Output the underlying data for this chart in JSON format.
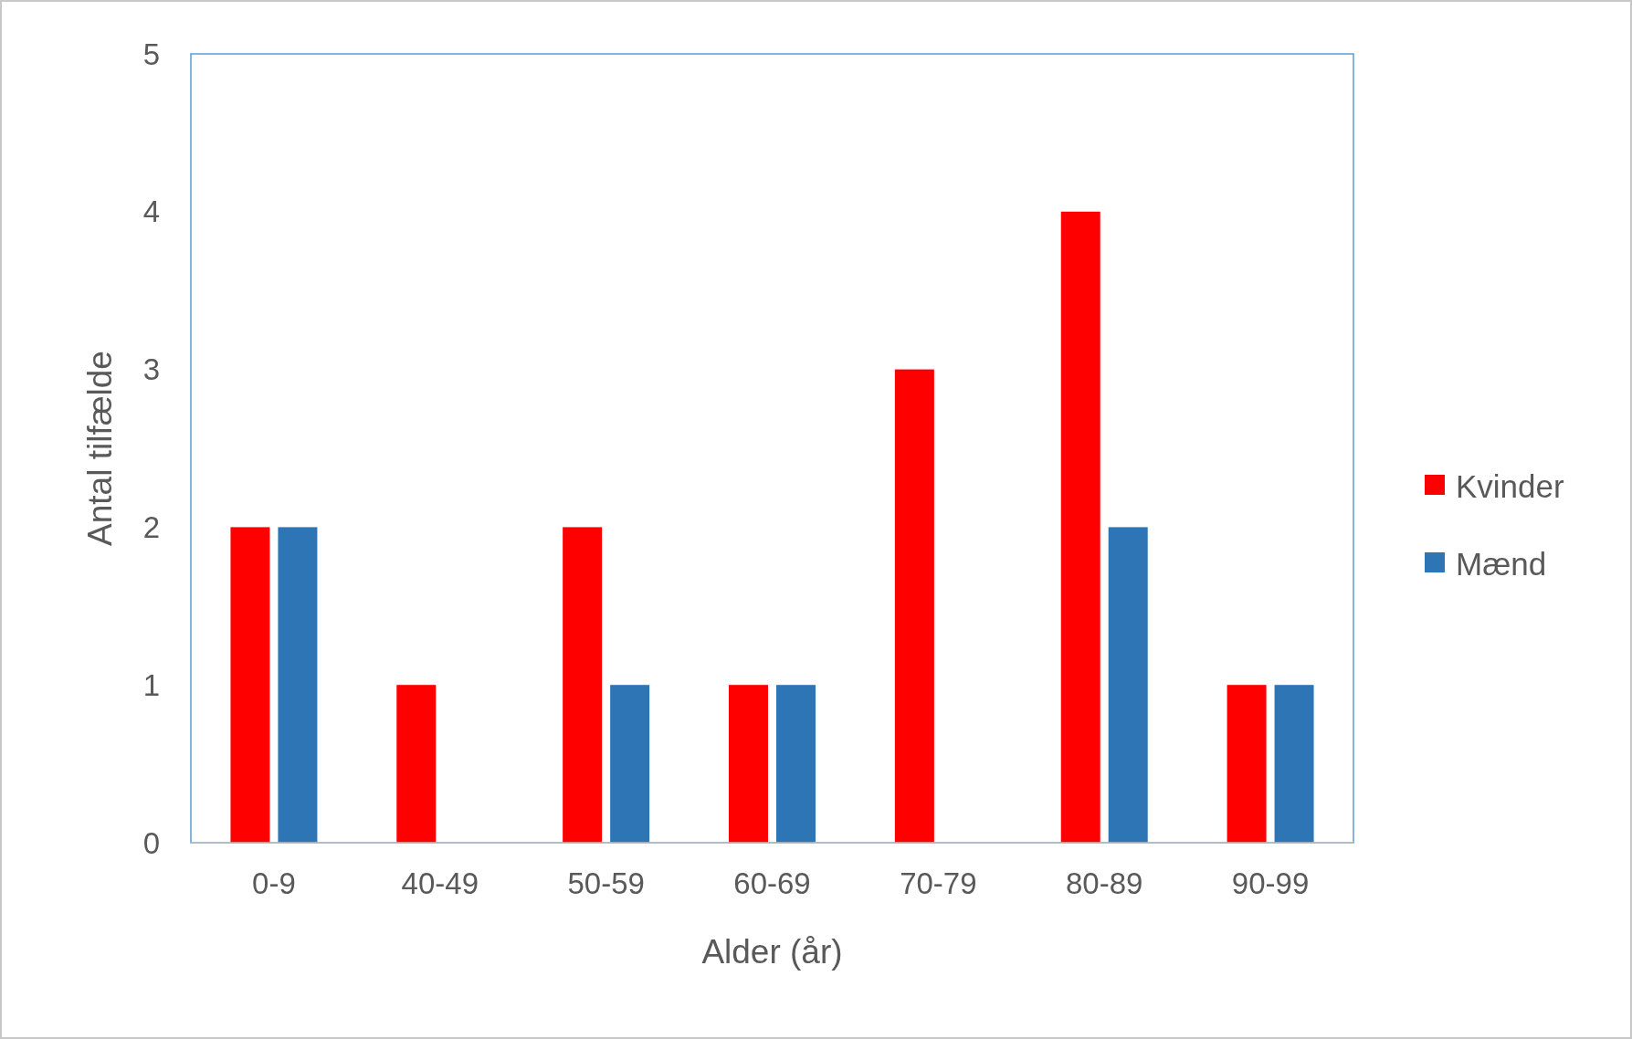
{
  "chart_data": {
    "type": "bar",
    "xlabel": "Alder (år)",
    "ylabel": "Antal tilfælde",
    "categories": [
      "0-9",
      "40-49",
      "50-59",
      "60-69",
      "70-79",
      "80-89",
      "90-99"
    ],
    "series": [
      {
        "name": "Kvinder",
        "color": "#ff0000",
        "values": [
          2,
          1,
          2,
          1,
          3,
          4,
          1
        ]
      },
      {
        "name": "Mænd",
        "color": "#2e75b6",
        "values": [
          2,
          0,
          1,
          1,
          0,
          2,
          1
        ]
      }
    ],
    "ylim": [
      0,
      5
    ],
    "yticks": [
      0,
      1,
      2,
      3,
      4,
      5
    ],
    "grid": false,
    "legend": "right"
  }
}
